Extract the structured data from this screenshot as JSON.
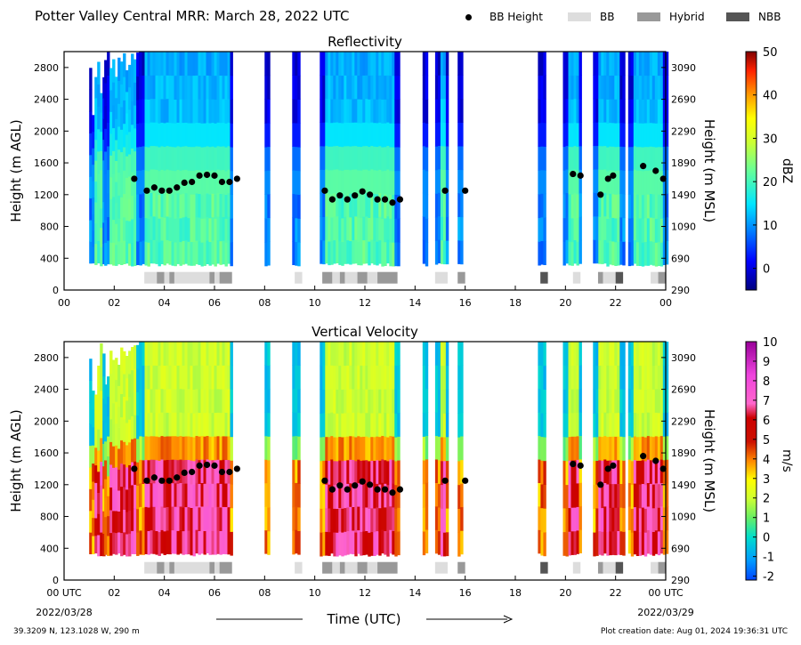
{
  "figure": {
    "title": "Potter Valley Central MRR:  March 28, 2022 UTC",
    "legend": [
      {
        "label": "BB Height",
        "kind": "dot",
        "color": "#000000"
      },
      {
        "label": "BB",
        "kind": "swatch",
        "color": "#dddddd"
      },
      {
        "label": "Hybrid",
        "kind": "swatch",
        "color": "#999999"
      },
      {
        "label": "NBB",
        "kind": "swatch",
        "color": "#555555"
      }
    ],
    "location": "39.3209 N, 123.1028 W, 290 m",
    "creation": "Plot creation date: Aug 01, 2024 19:36:31 UTC",
    "xlabel": "Time (UTC)",
    "date_start": "2022/03/28",
    "date_end": "2022/03/29",
    "ylabel_left": "Height (m AGL)",
    "ylabel_right": "Height (m MSL)"
  },
  "chart_data": [
    {
      "type": "heatmap",
      "title": "Reflectivity",
      "xlabel": "Time (UTC)",
      "ylabel": "Height (m AGL)",
      "y2label": "Height (m MSL)",
      "xlim": [
        0,
        24
      ],
      "ylim": [
        0,
        3000
      ],
      "x_ticks": [
        "00",
        "02",
        "04",
        "06",
        "08",
        "10",
        "12",
        "14",
        "16",
        "18",
        "20",
        "22",
        "00"
      ],
      "y_ticks": [
        0,
        400,
        800,
        1200,
        1600,
        2000,
        2400,
        2800
      ],
      "y2_ticks": [
        290,
        690,
        1090,
        1490,
        1890,
        2290,
        2690,
        3090
      ],
      "colorbar": {
        "label": "dBZ",
        "ticks": [
          0,
          10,
          20,
          30,
          40,
          50
        ],
        "range": [
          -5,
          50
        ]
      },
      "echo_segments_hours": [
        [
          1.0,
          1.6
        ],
        [
          1.6,
          3.0
        ],
        [
          3.0,
          6.7
        ],
        [
          8.0,
          8.2
        ],
        [
          9.1,
          9.4
        ],
        [
          10.2,
          13.3
        ],
        [
          14.3,
          14.5
        ],
        [
          14.8,
          15.3
        ],
        [
          15.7,
          15.9
        ],
        [
          18.9,
          19.2
        ],
        [
          19.9,
          20.6
        ],
        [
          21.1,
          22.3
        ],
        [
          22.5,
          24.0
        ]
      ],
      "bb_height": {
        "x": [
          2.8,
          3.3,
          3.6,
          3.9,
          4.2,
          4.5,
          4.8,
          5.1,
          5.4,
          5.7,
          6.0,
          6.3,
          6.6,
          6.9,
          10.4,
          10.7,
          11.0,
          11.3,
          11.6,
          11.9,
          12.2,
          12.5,
          12.8,
          13.1,
          13.4,
          15.2,
          16.0,
          20.3,
          20.6,
          21.4,
          21.7,
          21.9,
          23.1,
          23.6,
          23.9
        ],
        "y": [
          1400,
          1250,
          1290,
          1250,
          1250,
          1290,
          1350,
          1360,
          1440,
          1450,
          1440,
          1360,
          1360,
          1400,
          1250,
          1140,
          1190,
          1140,
          1190,
          1240,
          1200,
          1140,
          1140,
          1100,
          1140,
          1250,
          1250,
          1460,
          1440,
          1200,
          1400,
          1440,
          1560,
          1500,
          1400
        ]
      },
      "bb_classification": [
        {
          "start": 3.2,
          "end": 3.7,
          "class": "BB"
        },
        {
          "start": 3.7,
          "end": 4.0,
          "class": "Hybrid"
        },
        {
          "start": 4.0,
          "end": 4.2,
          "class": "BB"
        },
        {
          "start": 4.2,
          "end": 4.4,
          "class": "Hybrid"
        },
        {
          "start": 4.4,
          "end": 5.8,
          "class": "BB"
        },
        {
          "start": 5.8,
          "end": 6.0,
          "class": "Hybrid"
        },
        {
          "start": 6.0,
          "end": 6.2,
          "class": "BB"
        },
        {
          "start": 6.2,
          "end": 6.7,
          "class": "Hybrid"
        },
        {
          "start": 9.2,
          "end": 9.5,
          "class": "BB"
        },
        {
          "start": 10.3,
          "end": 10.7,
          "class": "Hybrid"
        },
        {
          "start": 10.7,
          "end": 11.0,
          "class": "BB"
        },
        {
          "start": 11.0,
          "end": 11.2,
          "class": "Hybrid"
        },
        {
          "start": 11.2,
          "end": 11.7,
          "class": "BB"
        },
        {
          "start": 11.7,
          "end": 12.1,
          "class": "Hybrid"
        },
        {
          "start": 12.1,
          "end": 12.5,
          "class": "BB"
        },
        {
          "start": 12.5,
          "end": 13.3,
          "class": "Hybrid"
        },
        {
          "start": 14.8,
          "end": 15.3,
          "class": "BB"
        },
        {
          "start": 15.7,
          "end": 16.0,
          "class": "Hybrid"
        },
        {
          "start": 19.0,
          "end": 19.3,
          "class": "NBB"
        },
        {
          "start": 20.3,
          "end": 20.6,
          "class": "BB"
        },
        {
          "start": 21.3,
          "end": 21.5,
          "class": "Hybrid"
        },
        {
          "start": 21.5,
          "end": 22.0,
          "class": "BB"
        },
        {
          "start": 22.0,
          "end": 22.3,
          "class": "NBB"
        },
        {
          "start": 23.4,
          "end": 23.7,
          "class": "BB"
        },
        {
          "start": 23.7,
          "end": 24.0,
          "class": "Hybrid"
        }
      ]
    },
    {
      "type": "heatmap",
      "title": "Vertical Velocity",
      "xlabel": "Time (UTC)",
      "ylabel": "Height (m AGL)",
      "y2label": "Height (m MSL)",
      "xlim": [
        0,
        24
      ],
      "ylim": [
        0,
        3000
      ],
      "x_ticks": [
        "00 UTC",
        "02",
        "04",
        "06",
        "08",
        "10",
        "12",
        "14",
        "16",
        "18",
        "20",
        "22",
        "00 UTC"
      ],
      "y_ticks": [
        0,
        400,
        800,
        1200,
        1600,
        2000,
        2400,
        2800
      ],
      "y2_ticks": [
        290,
        690,
        1090,
        1490,
        1890,
        2290,
        2690,
        3090
      ],
      "colorbar": {
        "label": "m/s",
        "ticks": [
          -2,
          -1,
          0,
          1,
          2,
          3,
          4,
          5,
          6,
          7,
          8,
          9,
          10
        ],
        "range": [
          -2.2,
          10
        ]
      },
      "echo_segments_hours": [
        [
          1.0,
          1.6
        ],
        [
          1.6,
          3.0
        ],
        [
          3.0,
          6.7
        ],
        [
          8.0,
          8.2
        ],
        [
          9.1,
          9.4
        ],
        [
          10.2,
          13.3
        ],
        [
          14.3,
          14.5
        ],
        [
          14.8,
          15.3
        ],
        [
          15.7,
          15.9
        ],
        [
          18.9,
          19.2
        ],
        [
          19.9,
          20.6
        ],
        [
          21.1,
          22.3
        ],
        [
          22.5,
          24.0
        ]
      ],
      "bb_height": {
        "x": [
          2.8,
          3.3,
          3.6,
          3.9,
          4.2,
          4.5,
          4.8,
          5.1,
          5.4,
          5.7,
          6.0,
          6.3,
          6.6,
          6.9,
          10.4,
          10.7,
          11.0,
          11.3,
          11.6,
          11.9,
          12.2,
          12.5,
          12.8,
          13.1,
          13.4,
          15.2,
          16.0,
          20.3,
          20.6,
          21.4,
          21.7,
          21.9,
          23.1,
          23.6,
          23.9
        ],
        "y": [
          1400,
          1250,
          1290,
          1250,
          1250,
          1290,
          1350,
          1360,
          1440,
          1450,
          1440,
          1360,
          1360,
          1400,
          1250,
          1140,
          1190,
          1140,
          1190,
          1240,
          1200,
          1140,
          1140,
          1100,
          1140,
          1250,
          1250,
          1460,
          1440,
          1200,
          1400,
          1440,
          1560,
          1500,
          1400
        ]
      },
      "bb_classification": [
        {
          "start": 3.2,
          "end": 3.7,
          "class": "BB"
        },
        {
          "start": 3.7,
          "end": 4.0,
          "class": "Hybrid"
        },
        {
          "start": 4.0,
          "end": 4.2,
          "class": "BB"
        },
        {
          "start": 4.2,
          "end": 4.4,
          "class": "Hybrid"
        },
        {
          "start": 4.4,
          "end": 5.8,
          "class": "BB"
        },
        {
          "start": 5.8,
          "end": 6.0,
          "class": "Hybrid"
        },
        {
          "start": 6.0,
          "end": 6.2,
          "class": "BB"
        },
        {
          "start": 6.2,
          "end": 6.7,
          "class": "Hybrid"
        },
        {
          "start": 9.2,
          "end": 9.5,
          "class": "BB"
        },
        {
          "start": 10.3,
          "end": 10.7,
          "class": "Hybrid"
        },
        {
          "start": 10.7,
          "end": 11.0,
          "class": "BB"
        },
        {
          "start": 11.0,
          "end": 11.2,
          "class": "Hybrid"
        },
        {
          "start": 11.2,
          "end": 11.7,
          "class": "BB"
        },
        {
          "start": 11.7,
          "end": 12.1,
          "class": "Hybrid"
        },
        {
          "start": 12.1,
          "end": 12.5,
          "class": "BB"
        },
        {
          "start": 12.5,
          "end": 13.3,
          "class": "Hybrid"
        },
        {
          "start": 14.8,
          "end": 15.3,
          "class": "BB"
        },
        {
          "start": 15.7,
          "end": 16.0,
          "class": "Hybrid"
        },
        {
          "start": 19.0,
          "end": 19.3,
          "class": "NBB"
        },
        {
          "start": 20.3,
          "end": 20.6,
          "class": "BB"
        },
        {
          "start": 21.3,
          "end": 21.5,
          "class": "Hybrid"
        },
        {
          "start": 21.5,
          "end": 22.0,
          "class": "BB"
        },
        {
          "start": 22.0,
          "end": 22.3,
          "class": "NBB"
        },
        {
          "start": 23.4,
          "end": 23.7,
          "class": "BB"
        },
        {
          "start": 23.7,
          "end": 24.0,
          "class": "Hybrid"
        }
      ]
    }
  ]
}
